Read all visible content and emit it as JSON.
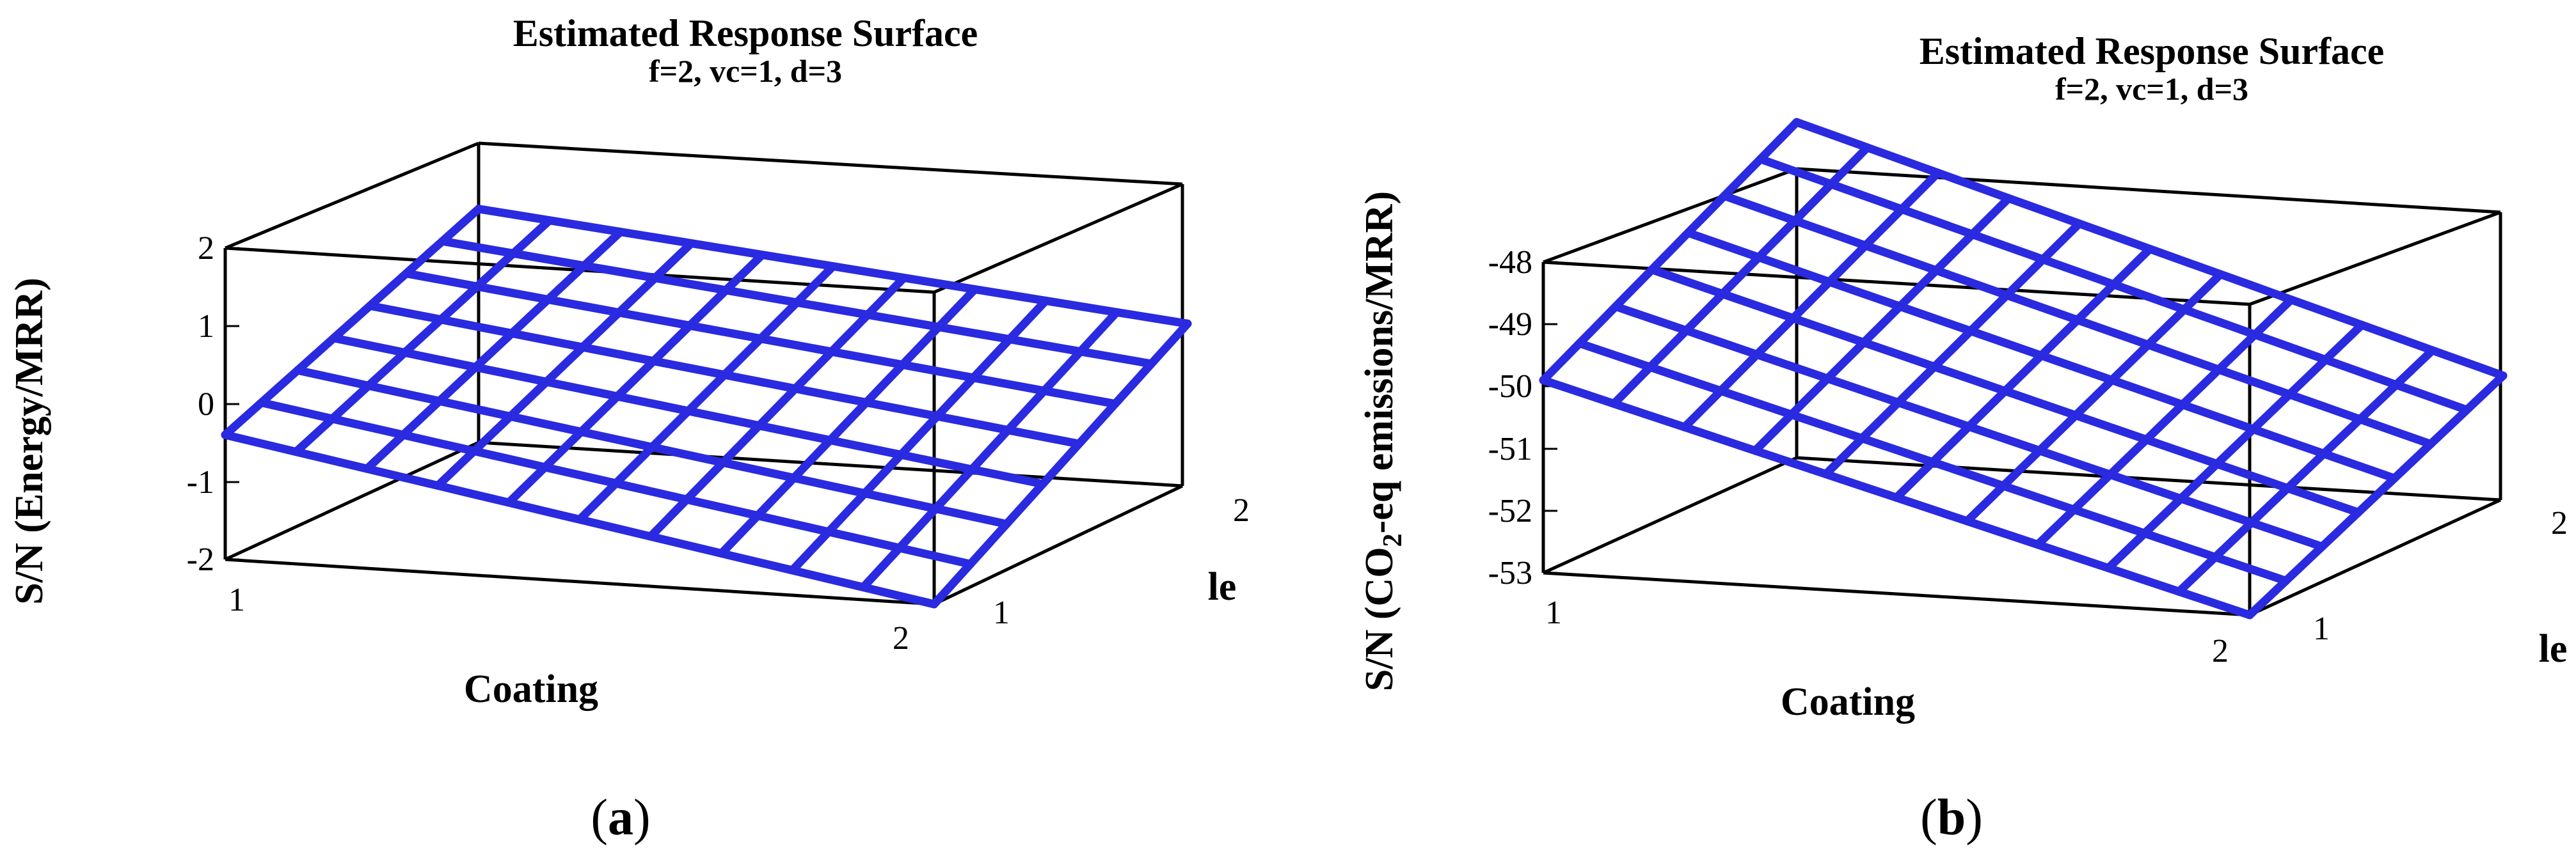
{
  "chart_data": [
    {
      "type": "surface",
      "panel": "a",
      "title": "Estimated Response Surface",
      "subtitle": "f=2, vc=1, d=3",
      "xlabel": "Coating",
      "ylabel": "le",
      "zlabel": "S/N (Energy/MRR)",
      "x_ticks": [
        "1",
        "2"
      ],
      "y_ticks": [
        "1",
        "2"
      ],
      "z_ticks": [
        "2",
        "1",
        "0",
        "-1",
        "-2"
      ],
      "xlim": [
        1,
        2
      ],
      "ylim": [
        1,
        2
      ],
      "zlim": [
        -2,
        2
      ],
      "grid": {
        "nx": 11,
        "ny": 8
      },
      "corners": {
        "x1_y1": -0.4,
        "x2_y1": -2.0,
        "x1_y2": 1.0,
        "x2_y2": 0.1
      },
      "color": "#2a2ae0"
    },
    {
      "type": "surface",
      "panel": "b",
      "title": "Estimated Response Surface",
      "subtitle": "f=2, vc=1, d=3",
      "xlabel": "Coating",
      "ylabel": "le",
      "zlabel_main": "S/N (CO",
      "zlabel_sub": "2",
      "zlabel_rest": "-eq emissions/MRR)",
      "x_ticks": [
        "1",
        "2"
      ],
      "y_ticks": [
        "1",
        "2"
      ],
      "z_ticks": [
        "-48",
        "-49",
        "-50",
        "-51",
        "-52",
        "-53"
      ],
      "xlim": [
        1,
        2
      ],
      "ylim": [
        1,
        2
      ],
      "zlim": [
        -53,
        -48
      ],
      "grid": {
        "nx": 11,
        "ny": 8
      },
      "corners": {
        "x1_y1": -49.9,
        "x2_y1": -53.0,
        "x1_y2": -47.6,
        "x2_y2": -51.0
      },
      "color": "#2a2ae0"
    }
  ],
  "labels": {
    "panel_a": "a",
    "panel_b": "b",
    "open_paren": "(",
    "close_paren": ")"
  }
}
